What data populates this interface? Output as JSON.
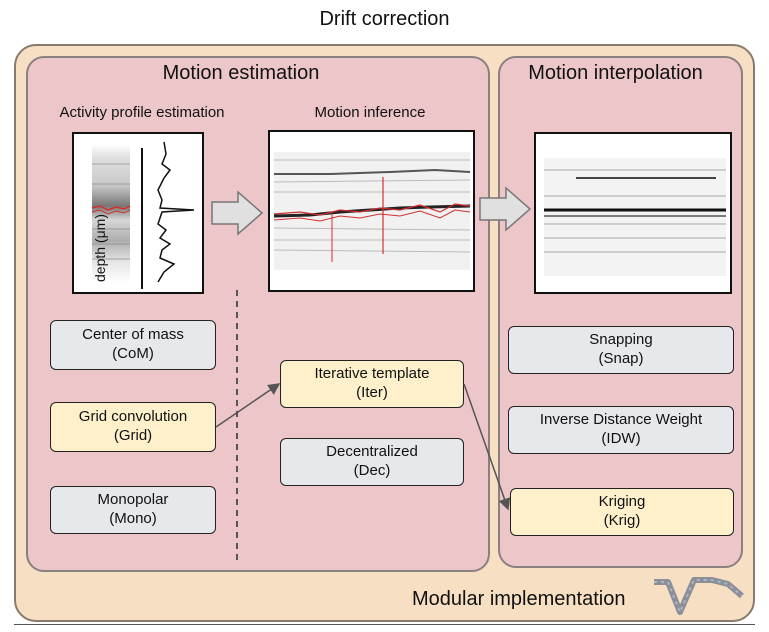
{
  "title": "Drift correction",
  "estimation": {
    "title": "Motion estimation",
    "activity_label": "Activity profile estimation",
    "inference_label": "Motion inference",
    "depth_label": "depth (μm)",
    "methods_left": [
      {
        "line1": "Center of mass",
        "line2": "(CoM)",
        "selected": false
      },
      {
        "line1": "Grid convolution",
        "line2": "(Grid)",
        "selected": true
      },
      {
        "line1": "Monopolar",
        "line2": "(Mono)",
        "selected": false
      }
    ],
    "methods_right": [
      {
        "line1": "Iterative template",
        "line2": "(Iter)",
        "selected": true
      },
      {
        "line1": "Decentralized",
        "line2": "(Dec)",
        "selected": false
      }
    ]
  },
  "interpolation": {
    "title": "Motion interpolation",
    "methods": [
      {
        "line1": "Snapping",
        "line2": "(Snap)",
        "selected": false
      },
      {
        "line1": "Inverse Distance Weight",
        "line2": "(IDW)",
        "selected": false
      },
      {
        "line1": "Kriging",
        "line2": "(Krig)",
        "selected": true
      }
    ]
  },
  "footer": "Modular implementation",
  "colors": {
    "outer_bg": "#f7dfc3",
    "panel_bg": "#ecc6c8",
    "selected_box": "#fff0cc",
    "unselected_box": "#e6e8ec",
    "trace": "#d32f2f"
  }
}
